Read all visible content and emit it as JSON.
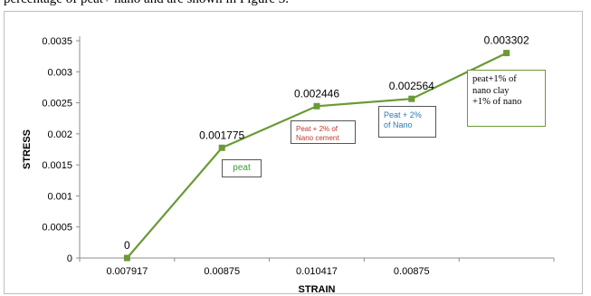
{
  "caption_fragment": "percentage of peat+ nano and are shown in Figure 3.",
  "chart_data": {
    "type": "line",
    "categories": [
      "0.007917",
      "0.00875",
      "0.010417",
      "0.00875",
      ""
    ],
    "values": [
      0,
      0.001775,
      0.002446,
      0.002564,
      0.003302
    ],
    "data_labels": [
      "0",
      "0.001775",
      "0.002446",
      "0.002564",
      "0.003302"
    ],
    "xlabel": "STRAIN",
    "ylabel": "STRESS",
    "ylim": [
      0,
      0.0035
    ],
    "yticks": [
      "0",
      "0.0005",
      "0.001",
      "0.0015",
      "0.002",
      "0.0025",
      "0.003",
      "0.0035"
    ],
    "series_color": "#6a9a35",
    "grid": false,
    "annotations": [
      {
        "text": "peat",
        "color": "#3a9a3a"
      },
      {
        "text": "Peat + 2% of\nNano cement",
        "color": "#c0392b"
      },
      {
        "text": "Peat + 2%\nof Nano",
        "color": "#2a7bb0"
      },
      {
        "text": "peat+1% of\nnano clay\n+1% of nano",
        "color": "#000000"
      }
    ]
  }
}
